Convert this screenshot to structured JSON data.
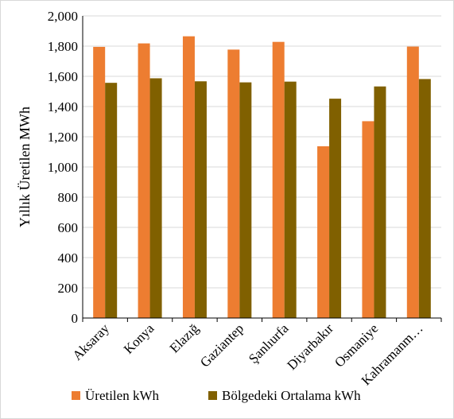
{
  "chart_data": {
    "type": "bar",
    "ylabel": "Yıllık Üretilen MWh",
    "ylim": [
      0,
      2000
    ],
    "ytick_step": 200,
    "grid": true,
    "legend_position": "bottom",
    "categories": [
      "Aksaray",
      "Konya",
      "Elazığ",
      "Gaziantep",
      "Şanlıurfa",
      "Diyarbakır",
      "Osmaniye",
      "Kahramanm…"
    ],
    "series": [
      {
        "name": "Üretilen kWh",
        "color": "#ED7D31",
        "values": [
          1795,
          1818,
          1865,
          1777,
          1828,
          1137,
          1303,
          1797
        ]
      },
      {
        "name": "Bölgedeki Ortalama kWh",
        "color": "#806000",
        "values": [
          1557,
          1587,
          1567,
          1560,
          1565,
          1452,
          1533,
          1582
        ]
      }
    ]
  }
}
